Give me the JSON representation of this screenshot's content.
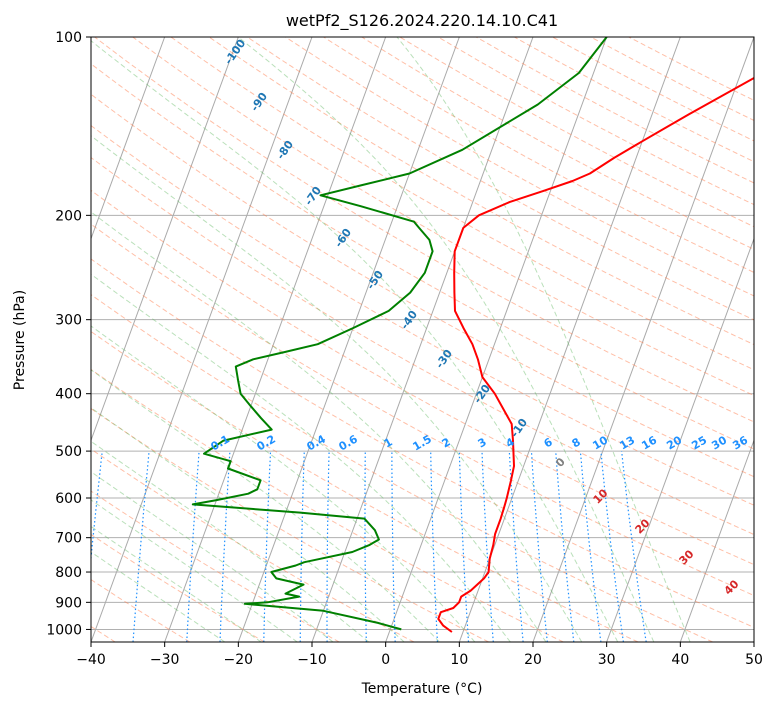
{
  "chart_data": {
    "type": "line",
    "subtype": "skew-t log-p",
    "title": "wetPf2_S126.2024.220.14.10.C41",
    "xlabel": "Temperature (°C)",
    "ylabel": "Pressure (hPa)",
    "xlim": [
      -40,
      50
    ],
    "ylim": [
      1050,
      100
    ],
    "y_scale": "log",
    "grid": true,
    "x_ticks": [
      "−40",
      "−30",
      "−20",
      "−10",
      "0",
      "10",
      "20",
      "30",
      "40",
      "50"
    ],
    "y_ticks": [
      "100",
      "200",
      "300",
      "400",
      "500",
      "600",
      "700",
      "800",
      "900",
      "1000"
    ],
    "series": [
      {
        "role": "temperature",
        "color": "#ff0000",
        "points": [
          [
            8.5,
            1010
          ],
          [
            7,
            985
          ],
          [
            6,
            960
          ],
          [
            6,
            935
          ],
          [
            7.5,
            920
          ],
          [
            8,
            900
          ],
          [
            8,
            880
          ],
          [
            9,
            860
          ],
          [
            10.2,
            820
          ],
          [
            10.5,
            800
          ],
          [
            10,
            760
          ],
          [
            9.8,
            720
          ],
          [
            9.5,
            690
          ],
          [
            9.5,
            650
          ],
          [
            9.4,
            620
          ],
          [
            9.3,
            600
          ],
          [
            9,
            560
          ],
          [
            8.7,
            530
          ],
          [
            7.3,
            480
          ],
          [
            6.3,
            450
          ],
          [
            2.5,
            400
          ],
          [
            0,
            375
          ],
          [
            -1.5,
            350
          ],
          [
            -3,
            330
          ],
          [
            -5,
            310
          ],
          [
            -7,
            290
          ],
          [
            -8,
            270
          ],
          [
            -9,
            250
          ],
          [
            -10,
            230
          ],
          [
            -10,
            210
          ],
          [
            -8.5,
            200
          ],
          [
            -5,
            190
          ],
          [
            -1,
            182
          ],
          [
            2.5,
            175
          ],
          [
            4.5,
            170
          ],
          [
            7,
            160
          ],
          [
            10,
            150
          ],
          [
            15,
            135
          ],
          [
            23,
            115
          ],
          [
            28,
            100
          ]
        ]
      },
      {
        "role": "dewpoint",
        "color": "#008000",
        "points": [
          [
            1.5,
            1000
          ],
          [
            -2,
            975
          ],
          [
            -10,
            930
          ],
          [
            -21,
            905
          ],
          [
            -18,
            900
          ],
          [
            -14,
            880
          ],
          [
            -16,
            870
          ],
          [
            -14,
            840
          ],
          [
            -18,
            820
          ],
          [
            -19,
            800
          ],
          [
            -16,
            780
          ],
          [
            -15,
            770
          ],
          [
            -13,
            760
          ],
          [
            -9,
            740
          ],
          [
            -7,
            720
          ],
          [
            -6,
            705
          ],
          [
            -7,
            680
          ],
          [
            -9,
            650
          ],
          [
            -18,
            635
          ],
          [
            -33,
            615
          ],
          [
            -30,
            605
          ],
          [
            -26,
            590
          ],
          [
            -25,
            580
          ],
          [
            -25,
            560
          ],
          [
            -30,
            535
          ],
          [
            -30,
            520
          ],
          [
            -34,
            505
          ],
          [
            -32,
            480
          ],
          [
            -26,
            460
          ],
          [
            -28,
            440
          ],
          [
            -30,
            420
          ],
          [
            -32,
            400
          ],
          [
            -33,
            380
          ],
          [
            -34,
            360
          ],
          [
            -32,
            350
          ],
          [
            -28,
            340
          ],
          [
            -24,
            330
          ],
          [
            -20,
            310
          ],
          [
            -16,
            290
          ],
          [
            -14,
            270
          ],
          [
            -13,
            250
          ],
          [
            -13,
            230
          ],
          [
            -14,
            220
          ],
          [
            -16,
            210
          ],
          [
            -17,
            205
          ],
          [
            -25,
            193
          ],
          [
            -31,
            185
          ],
          [
            -26,
            178
          ],
          [
            -20,
            170
          ],
          [
            -14,
            155
          ],
          [
            -6,
            130
          ],
          [
            -2,
            115
          ],
          [
            0,
            100
          ]
        ]
      }
    ],
    "mixing_ratio_labels": [
      "0.1",
      "0.2",
      "0.4",
      "0.6",
      "1",
      "1.5",
      "2",
      "3",
      "4",
      "6",
      "8",
      "10",
      "13",
      "16",
      "20",
      "25",
      "30",
      "36"
    ],
    "dry_adiabat_labels": [
      "-100",
      "-90",
      "-80",
      "-70",
      "-60",
      "-50",
      "-40",
      "-30",
      "-20",
      "-10"
    ],
    "moist_adiabat_labels": [
      "0",
      "10",
      "20",
      "30",
      "40"
    ],
    "colors": {
      "temperature": "#ff0000",
      "dewpoint": "#008000",
      "dry_adiabat": "#ff7f50",
      "moist_adiabat": "#66bb66",
      "mixing_ratio": "#1e90ff",
      "isotherm": "#aaaaaa"
    }
  }
}
